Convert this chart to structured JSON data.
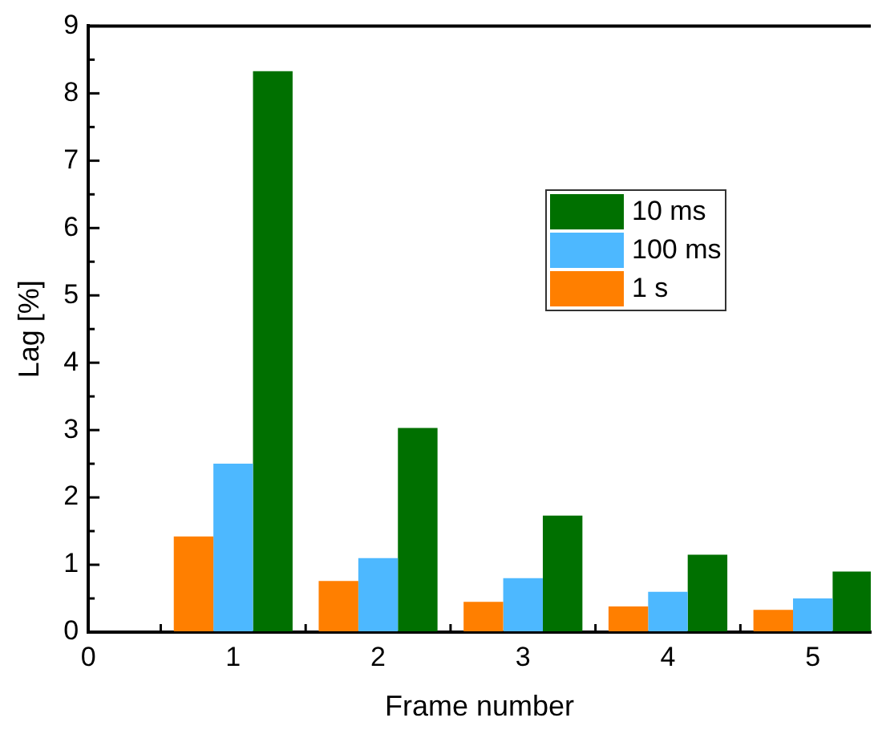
{
  "chart_data": {
    "type": "bar",
    "xlabel": "Frame number",
    "ylabel": "Lag [%]",
    "x": [
      1,
      2,
      3,
      4,
      5
    ],
    "series": [
      {
        "name": "1 s",
        "color": "#ff7f00",
        "values": [
          1.42,
          0.76,
          0.45,
          0.38,
          0.33
        ]
      },
      {
        "name": "100 ms",
        "color": "#4db8ff",
        "values": [
          2.5,
          1.1,
          0.8,
          0.6,
          0.5
        ]
      },
      {
        "name": "10 ms",
        "color": "#007000",
        "values": [
          8.33,
          3.03,
          1.73,
          1.15,
          0.9
        ]
      }
    ],
    "xlim": [
      0,
      5.4
    ],
    "xticks": [
      0,
      {
        "value": 0.5,
        "label": null
      },
      1,
      {
        "value": 1.5,
        "label": null
      },
      2,
      {
        "value": 2.5,
        "label": null
      },
      3,
      {
        "value": 3.5,
        "label": null
      },
      4,
      {
        "value": 4.5,
        "label": null
      },
      5
    ],
    "ylim": [
      0,
      9
    ],
    "yticks": [
      0,
      {
        "value": 0.5,
        "label": null
      },
      1,
      {
        "value": 1.5,
        "label": null
      },
      2,
      {
        "value": 2.5,
        "label": null
      },
      3,
      {
        "value": 3.5,
        "label": null
      },
      4,
      {
        "value": 4.5,
        "label": null
      },
      5,
      {
        "value": 5.5,
        "label": null
      },
      6,
      {
        "value": 6.5,
        "label": null
      },
      7,
      {
        "value": 7.5,
        "label": null
      },
      8,
      {
        "value": 8.5,
        "label": null
      },
      9
    ],
    "grid": false,
    "legend": "right"
  }
}
